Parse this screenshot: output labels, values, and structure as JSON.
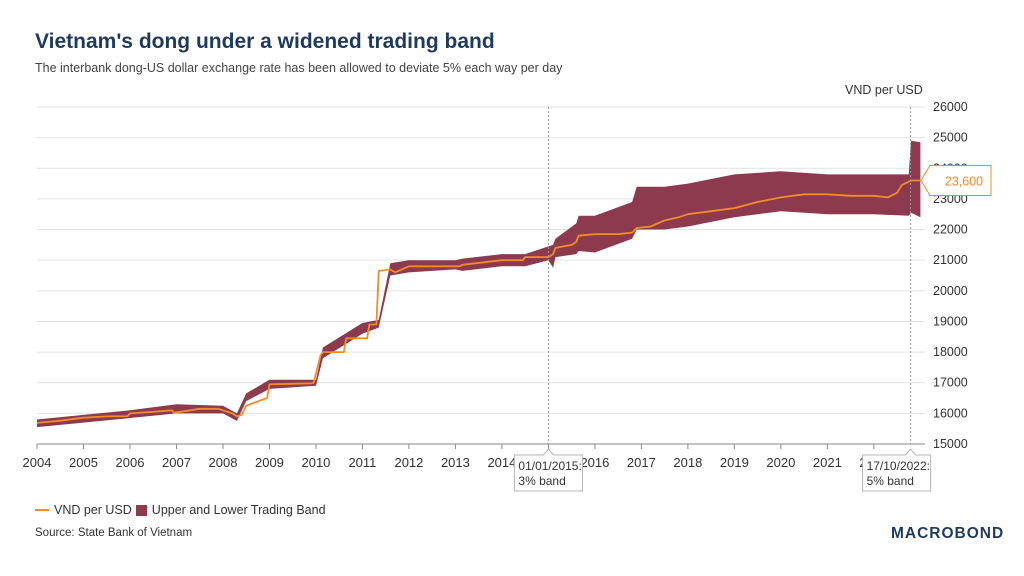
{
  "header": {
    "title": "Vietnam's dong under a widened trading band",
    "subtitle": "The interbank dong-US dollar exchange rate has been allowed to deviate 5% each way per day",
    "unit": "VND per USD"
  },
  "colors": {
    "line": "#f28c28",
    "band": "#8e3a4e",
    "grid": "#e2e2e2",
    "annotation": "#999999",
    "title": "#1f3a5f"
  },
  "chart_data": {
    "type": "line",
    "title": "Vietnam's dong under a widened trading band",
    "ylabel": "VND per USD",
    "xlim": [
      2004,
      2023.1
    ],
    "ylim": [
      15000,
      26000
    ],
    "y_ticks": [
      "15000",
      "16000",
      "17000",
      "18000",
      "19000",
      "20000",
      "21000",
      "22000",
      "23000",
      "24000",
      "25000",
      "26000"
    ],
    "x_ticks": [
      "2004",
      "2005",
      "2006",
      "2007",
      "2008",
      "2009",
      "2010",
      "2011",
      "2012",
      "2013",
      "2014",
      "2015",
      "2016",
      "2017",
      "2018",
      "2019",
      "2020",
      "2021",
      "2022"
    ],
    "series": [
      {
        "name": "VND per USD",
        "x": [
          2004.0,
          2004.5,
          2005.0,
          2005.5,
          2005.95,
          2006.0,
          2006.5,
          2006.9,
          2006.95,
          2007.5,
          2007.9,
          2008.0,
          2008.2,
          2008.3,
          2008.4,
          2008.5,
          2008.95,
          2009.0,
          2009.9,
          2009.95,
          2010.1,
          2010.15,
          2010.6,
          2010.65,
          2011.1,
          2011.15,
          2011.3,
          2011.35,
          2011.6,
          2011.7,
          2012.0,
          2012.5,
          2013.0,
          2013.1,
          2013.15,
          2014.0,
          2014.45,
          2014.5,
          2015.0,
          2015.1,
          2015.15,
          2015.5,
          2015.6,
          2015.65,
          2016.0,
          2016.5,
          2016.8,
          2016.9,
          2017.2,
          2017.5,
          2017.8,
          2018.0,
          2018.5,
          2019.0,
          2019.5,
          2020.0,
          2020.5,
          2021.0,
          2021.5,
          2022.0,
          2022.3,
          2022.5,
          2022.6,
          2022.8,
          2023.0
        ],
        "values": [
          15690,
          15760,
          15860,
          15900,
          15910,
          16000,
          16050,
          16100,
          16020,
          16150,
          16150,
          16100,
          16000,
          15900,
          15950,
          16250,
          16500,
          16950,
          16980,
          17000,
          17900,
          18000,
          18000,
          18450,
          18450,
          18900,
          18900,
          20650,
          20700,
          20600,
          20800,
          20800,
          20800,
          20800,
          20850,
          21000,
          21000,
          21100,
          21100,
          21200,
          21400,
          21500,
          21600,
          21800,
          21850,
          21850,
          21900,
          22050,
          22100,
          22300,
          22400,
          22500,
          22600,
          22700,
          22900,
          23050,
          23150,
          23150,
          23100,
          23100,
          23050,
          23200,
          23450,
          23600,
          23600
        ]
      },
      {
        "name": "Upper and Lower Trading Band",
        "x": [
          2004.0,
          2005.0,
          2006.0,
          2007.0,
          2008.0,
          2008.3,
          2008.5,
          2009.0,
          2010.0,
          2010.15,
          2011.0,
          2011.35,
          2011.6,
          2012.0,
          2013.0,
          2013.15,
          2014.0,
          2014.5,
          2015.0,
          2015.1,
          2015.15,
          2015.6,
          2015.65,
          2016.0,
          2016.8,
          2016.9,
          2017.5,
          2018.0,
          2019.0,
          2020.0,
          2021.0,
          2022.0,
          2022.75,
          2022.8,
          2023.0
        ],
        "upper": [
          15800,
          15950,
          16100,
          16300,
          16250,
          16000,
          16650,
          17100,
          17100,
          18150,
          18950,
          19050,
          20900,
          21000,
          21000,
          21050,
          21200,
          21200,
          21450,
          21500,
          21700,
          22200,
          22450,
          22450,
          22900,
          23400,
          23400,
          23500,
          23800,
          23900,
          23800,
          23800,
          23800,
          24900,
          24850
        ],
        "lower": [
          15550,
          15700,
          15850,
          16000,
          16000,
          15750,
          16400,
          16800,
          16900,
          17800,
          18600,
          18800,
          20500,
          20600,
          20700,
          20650,
          20800,
          20800,
          21000,
          20750,
          21100,
          21200,
          21300,
          21250,
          21700,
          22000,
          22000,
          22100,
          22400,
          22600,
          22500,
          22500,
          22450,
          22550,
          22400
        ]
      }
    ],
    "annotations": [
      {
        "x": 2015.0,
        "label_line1": "01/01/2015:",
        "label_line2": "3% band"
      },
      {
        "x": 2022.79,
        "label_line1": "17/10/2022:",
        "label_line2": "5% band"
      }
    ],
    "last_value_label": "23,600"
  },
  "legend": {
    "line_label": "VND per USD",
    "band_label": "Upper and Lower Trading Band"
  },
  "footer": {
    "source": "Source: State Bank of Vietnam",
    "brand": "MACROBOND"
  }
}
